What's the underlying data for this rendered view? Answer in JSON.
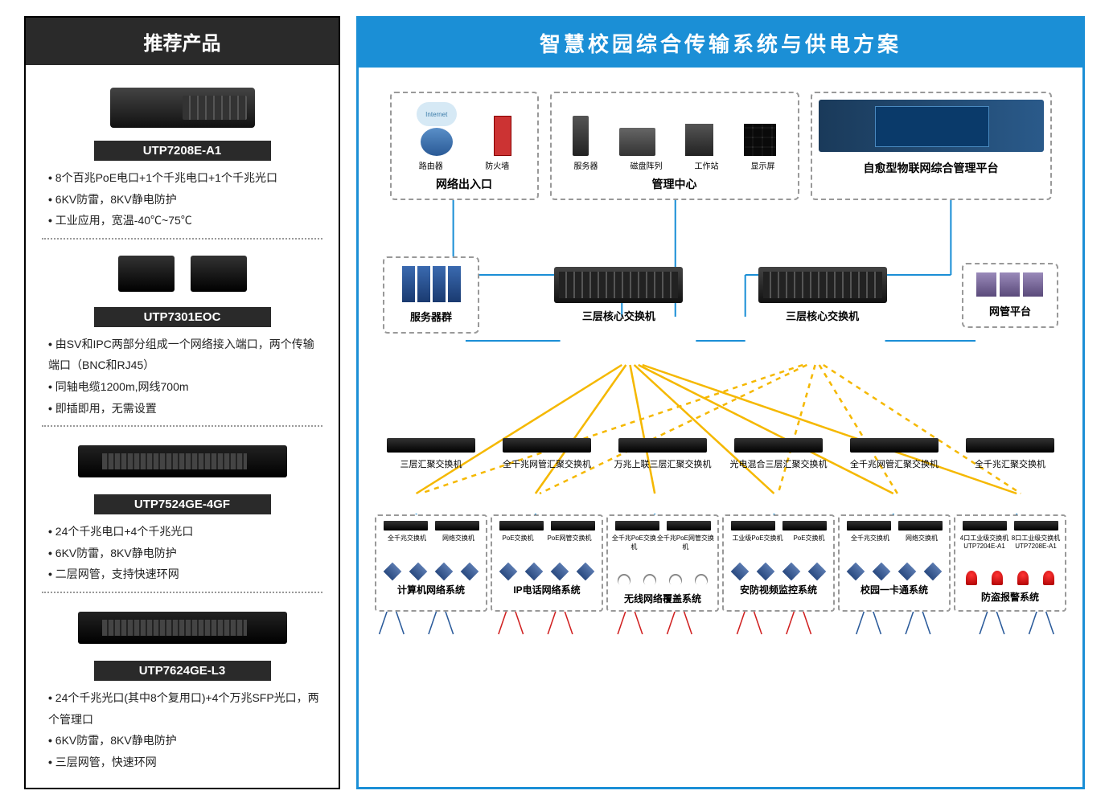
{
  "left": {
    "header": "推荐产品",
    "products": [
      {
        "name": "UTP7208E-A1",
        "specs": [
          "8个百兆PoE电口+1个千兆电口+1个千兆光口",
          "6KV防雷，8KV静电防护",
          "工业应用，宽温-40℃~75℃"
        ]
      },
      {
        "name": "UTP7301EOC",
        "specs": [
          "由SV和IPC两部分组成一个网络接入端口，两个传输端口（BNC和RJ45）",
          "同轴电缆1200m,网线700m",
          "即插即用，无需设置"
        ]
      },
      {
        "name": "UTP7524GE-4GF",
        "specs": [
          "24个千兆电口+4个千兆光口",
          "6KV防雷，8KV静电防护",
          "二层网管，支持快速环网"
        ]
      },
      {
        "name": "UTP7624GE-L3",
        "specs": [
          "24个千兆光口(其中8个复用口)+4个万兆SFP光口，两个管理口",
          "6KV防雷，8KV静电防护",
          "三层网管，快速环网"
        ]
      }
    ]
  },
  "right": {
    "header": "智慧校园综合传输系统与供电方案",
    "top_row": {
      "box1": {
        "title": "网络出入口",
        "items": [
          "路由器",
          "防火墙"
        ],
        "cloud_text": "Internet"
      },
      "box2": {
        "title": "管理中心",
        "items": [
          "服务器",
          "磁盘阵列",
          "工作站",
          "显示屏"
        ]
      },
      "box3": {
        "title": "自愈型物联网综合管理平台"
      }
    },
    "mid_row": {
      "server_cluster": "服务器群",
      "core_sw1": "三层核心交换机",
      "core_sw2": "三层核心交换机",
      "mgmt": "网管平台"
    },
    "agg_row": [
      "三层汇聚交换机",
      "全千兆网管汇聚交换机",
      "万兆上联三层汇聚交换机",
      "光电混合三层汇聚交换机",
      "全千兆网管汇聚交换机",
      "全千兆汇聚交换机"
    ],
    "bottom_row": [
      {
        "title": "计算机网络系统",
        "sw": [
          "全千兆交换机",
          "网络交换机"
        ]
      },
      {
        "title": "IP电话网络系统",
        "sw": [
          "PoE交换机",
          "PoE网管交换机"
        ]
      },
      {
        "title": "无线网络覆盖系统",
        "sw": [
          "全千兆PoE交换机",
          "全千兆PoE网管交换机"
        ]
      },
      {
        "title": "安防视频监控系统",
        "sw": [
          "工业级PoE交换机",
          "PoE交换机"
        ]
      },
      {
        "title": "校园一卡通系统",
        "sw": [
          "全千兆交换机",
          "网络交换机"
        ]
      },
      {
        "title": "防盗报警系统",
        "sw": [
          "4口工业级交换机 UTP7204E-A1",
          "8口工业级交换机 UTP7208E-A1"
        ]
      }
    ],
    "colors": {
      "header_bg": "#1b8fd6",
      "line_blue": "#1b8fd6",
      "line_yellow": "#f5b800",
      "line_red": "#d02020",
      "line_navy": "#2a5a9a",
      "dash_gray": "#999999"
    }
  }
}
